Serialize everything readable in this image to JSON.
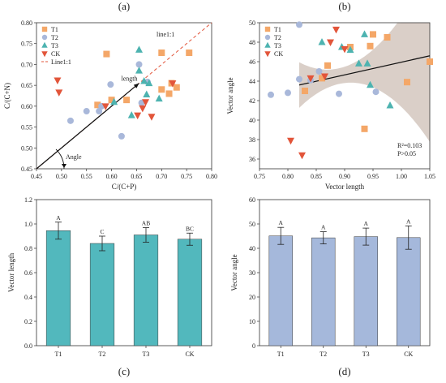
{
  "chart_data": [
    {
      "panel": "(a)",
      "type": "scatter",
      "xlabel": "C/(C+P)",
      "ylabel": "C/(C+N)",
      "xlim": [
        0.45,
        0.8
      ],
      "ylim": [
        0.45,
        0.8
      ],
      "xticks": [
        "0.45",
        "0.50",
        "0.55",
        "0.60",
        "0.65",
        "0.70",
        "0.75",
        "0.80"
      ],
      "yticks": [
        "0.45",
        "0.50",
        "0.55",
        "0.60",
        "0.65",
        "0.70",
        "0.75",
        "0.80"
      ],
      "legend": {
        "position": "top-left",
        "entries": [
          "T1",
          "T2",
          "T3",
          "CK",
          "Line1:1"
        ]
      },
      "annotations": {
        "line_label": "line1:1",
        "vector_label": "length",
        "angle_label": "Angle"
      },
      "vector": {
        "from": [
          0.45,
          0.45
        ],
        "to": [
          0.655,
          0.655
        ]
      },
      "series": [
        {
          "name": "T1",
          "color": "#F4A768",
          "marker": "square",
          "points": [
            [
              0.572,
              0.603
            ],
            [
              0.59,
              0.725
            ],
            [
              0.6,
              0.615
            ],
            [
              0.63,
              0.615
            ],
            [
              0.7,
              0.728
            ],
            [
              0.7,
              0.64
            ],
            [
              0.715,
              0.63
            ],
            [
              0.72,
              0.655
            ],
            [
              0.73,
              0.645
            ],
            [
              0.755,
              0.728
            ]
          ]
        },
        {
          "name": "T2",
          "color": "#A9B8DA",
          "marker": "circle",
          "points": [
            [
              0.518,
              0.565
            ],
            [
              0.55,
              0.588
            ],
            [
              0.575,
              0.588
            ],
            [
              0.58,
              0.6
            ],
            [
              0.598,
              0.652
            ],
            [
              0.62,
              0.528
            ],
            [
              0.655,
              0.7
            ],
            [
              0.66,
              0.608
            ],
            [
              0.672,
              0.658
            ]
          ]
        },
        {
          "name": "T3",
          "color": "#4DB3B0",
          "marker": "triangle",
          "points": [
            [
              0.605,
              0.61
            ],
            [
              0.64,
              0.578
            ],
            [
              0.655,
              0.735
            ],
            [
              0.655,
              0.685
            ],
            [
              0.665,
              0.66
            ],
            [
              0.67,
              0.628
            ],
            [
              0.675,
              0.655
            ],
            [
              0.695,
              0.618
            ]
          ]
        },
        {
          "name": "CK",
          "color": "#E2553A",
          "marker": "triangle-down",
          "points": [
            [
              0.492,
              0.662
            ],
            [
              0.495,
              0.633
            ],
            [
              0.588,
              0.6
            ],
            [
              0.652,
              0.578
            ],
            [
              0.662,
              0.595
            ],
            [
              0.668,
              0.61
            ],
            [
              0.68,
              0.575
            ],
            [
              0.722,
              0.655
            ]
          ]
        }
      ]
    },
    {
      "panel": "(b)",
      "type": "scatter",
      "xlabel": "Vector length",
      "ylabel": "Vector angle",
      "xlim": [
        0.75,
        1.05
      ],
      "ylim": [
        35,
        50
      ],
      "xticks": [
        "0.75",
        "0.80",
        "0.85",
        "0.90",
        "0.95",
        "1.00",
        "1.05"
      ],
      "yticks": [
        "36",
        "38",
        "40",
        "42",
        "44",
        "46",
        "48",
        "50"
      ],
      "legend": {
        "position": "top-left",
        "entries": [
          "T1",
          "T2",
          "T3",
          "CK"
        ]
      },
      "annotations": {
        "r2": "R²=0.103",
        "p": "P>0.05"
      },
      "fit_line": {
        "x": [
          0.82,
          1.05
        ],
        "y": [
          43.6,
          46.6
        ]
      },
      "series": [
        {
          "name": "T1",
          "color": "#F4A768",
          "marker": "square",
          "points": [
            [
              0.83,
              43.0
            ],
            [
              0.86,
              44.3
            ],
            [
              0.87,
              45.6
            ],
            [
              0.91,
              47.5
            ],
            [
              0.935,
              39.1
            ],
            [
              0.945,
              47.6
            ],
            [
              0.95,
              48.8
            ],
            [
              0.975,
              48.5
            ],
            [
              1.01,
              43.9
            ],
            [
              1.05,
              46.0
            ]
          ]
        },
        {
          "name": "T2",
          "color": "#A9B8DA",
          "marker": "circle",
          "points": [
            [
              0.77,
              42.6
            ],
            [
              0.8,
              42.8
            ],
            [
              0.82,
              49.8
            ],
            [
              0.82,
              44.2
            ],
            [
              0.84,
              44.1
            ],
            [
              0.855,
              45.0
            ],
            [
              0.89,
              42.7
            ],
            [
              0.955,
              42.9
            ]
          ]
        },
        {
          "name": "T3",
          "color": "#4DB3B0",
          "marker": "triangle",
          "points": [
            [
              0.86,
              48.0
            ],
            [
              0.895,
              47.5
            ],
            [
              0.91,
              47.2
            ],
            [
              0.925,
              45.8
            ],
            [
              0.935,
              48.8
            ],
            [
              0.94,
              45.8
            ],
            [
              0.945,
              43.6
            ],
            [
              0.98,
              41.5
            ]
          ]
        },
        {
          "name": "CK",
          "color": "#E2553A",
          "marker": "triangle-down",
          "points": [
            [
              0.805,
              37.9
            ],
            [
              0.825,
              36.4
            ],
            [
              0.84,
              44.3
            ],
            [
              0.865,
              44.5
            ],
            [
              0.875,
              48.0
            ],
            [
              0.885,
              49.3
            ],
            [
              0.9,
              47.3
            ]
          ]
        }
      ]
    },
    {
      "panel": "(c)",
      "type": "bar",
      "ylabel": "Vector length",
      "ylim": [
        0.0,
        1.2
      ],
      "yticks": [
        "0.0",
        "0.2",
        "0.4",
        "0.6",
        "0.8",
        "1.0",
        "1.2"
      ],
      "color": "#52B8BD",
      "categories": [
        "T1",
        "T2",
        "T3",
        "CK"
      ],
      "values": [
        0.945,
        0.84,
        0.91,
        0.875
      ],
      "errors": [
        0.07,
        0.06,
        0.06,
        0.05
      ],
      "letters": [
        "A",
        "C",
        "AB",
        "BC"
      ]
    },
    {
      "panel": "(d)",
      "type": "bar",
      "ylabel": "Vector angle",
      "ylim": [
        0,
        60
      ],
      "yticks": [
        "0",
        "10",
        "20",
        "30",
        "40",
        "50",
        "60"
      ],
      "color": "#A5B8DB",
      "categories": [
        "T1",
        "T2",
        "T3",
        "CK"
      ],
      "values": [
        45.1,
        44.3,
        44.8,
        44.4
      ],
      "errors": [
        3.5,
        2.5,
        3.5,
        4.8
      ],
      "letters": [
        "A",
        "A",
        "A",
        "A"
      ]
    }
  ]
}
